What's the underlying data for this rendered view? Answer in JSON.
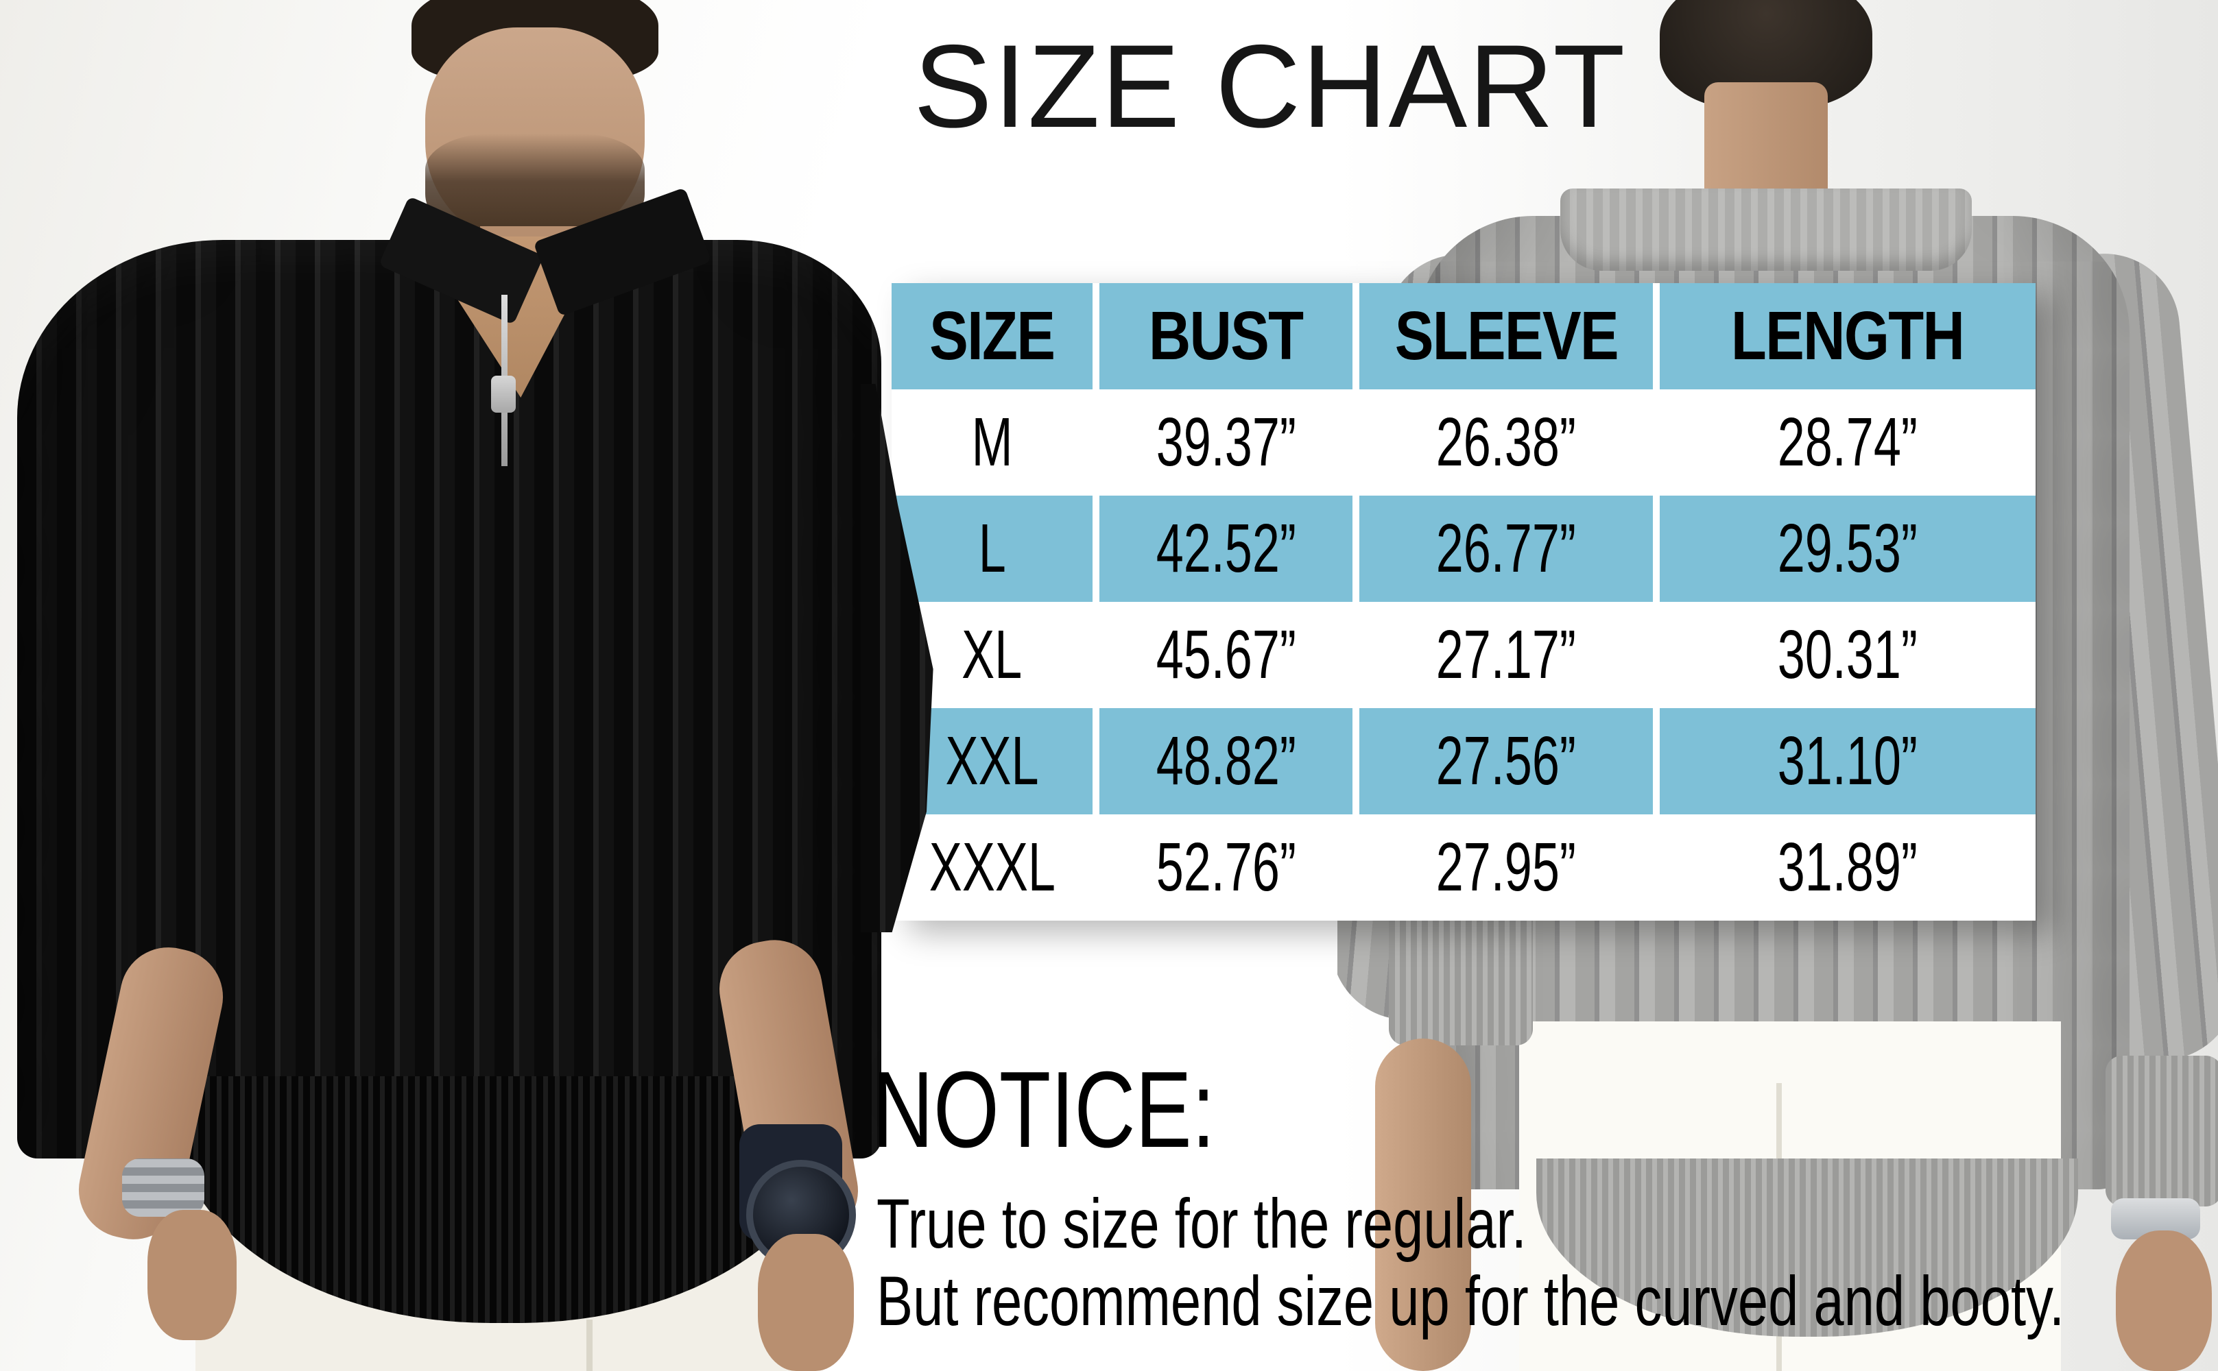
{
  "chart_data": {
    "type": "table",
    "title": "SIZE CHART",
    "columns": [
      "SIZE",
      "BUST",
      "SLEEVE",
      "LENGTH"
    ],
    "rows": [
      [
        "M",
        "39.37”",
        "26.38”",
        "28.74”"
      ],
      [
        "L",
        "42.52”",
        "26.77”",
        "29.53”"
      ],
      [
        "XL",
        "45.67”",
        "27.17”",
        "30.31”"
      ],
      [
        "XXL",
        "48.82”",
        "27.56”",
        "31.10”"
      ],
      [
        "XXXL",
        "52.76”",
        "27.95”",
        "31.89”"
      ]
    ],
    "units": "inches",
    "layout": "header row, L row and XXL row filled blue; M, XL, XXXL rows white; white gutters between columns",
    "header_fill": "#7ec0d7"
  },
  "notice": {
    "heading": "NOTICE:",
    "lines": [
      "True to size for the regular.",
      "But recommend size up for the curved and booty."
    ]
  },
  "photos": {
    "left": "front view — man wearing black ribbed-knit quarter-zip polo sweater and white trousers",
    "right": "back view — man wearing gray ribbed-knit polo sweater and white trousers"
  },
  "colors": {
    "table_blue": "#7ec0d7",
    "text": "#000000"
  }
}
